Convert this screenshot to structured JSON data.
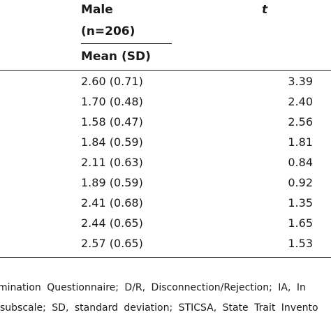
{
  "header": {
    "group_label": "Male",
    "group_n": "(n=206)",
    "stat_label": "Mean (SD)",
    "t_label": "t"
  },
  "rows": [
    {
      "mean_sd": "2.60 (0.71)",
      "t": "3.39"
    },
    {
      "mean_sd": "1.70 (0.48)",
      "t": "2.40"
    },
    {
      "mean_sd": "1.58 (0.47)",
      "t": "2.56"
    },
    {
      "mean_sd": "1.84 (0.59)",
      "t": "1.81"
    },
    {
      "mean_sd": "2.11 (0.63)",
      "t": "0.84"
    },
    {
      "mean_sd": "1.89 (0.59)",
      "t": "0.92"
    },
    {
      "mean_sd": "2.41 (0.68)",
      "t": "1.35"
    },
    {
      "mean_sd": "2.44 (0.65)",
      "t": "1.65"
    },
    {
      "mean_sd": "2.57 (0.65)",
      "t": "1.53"
    }
  ],
  "footnote": {
    "line1": "mination Questionnaire; D/R, Disconnection/Rejection; IA, In",
    "line2": "subscale; SD, standard deviation; STICSA, State Trait Invento"
  }
}
